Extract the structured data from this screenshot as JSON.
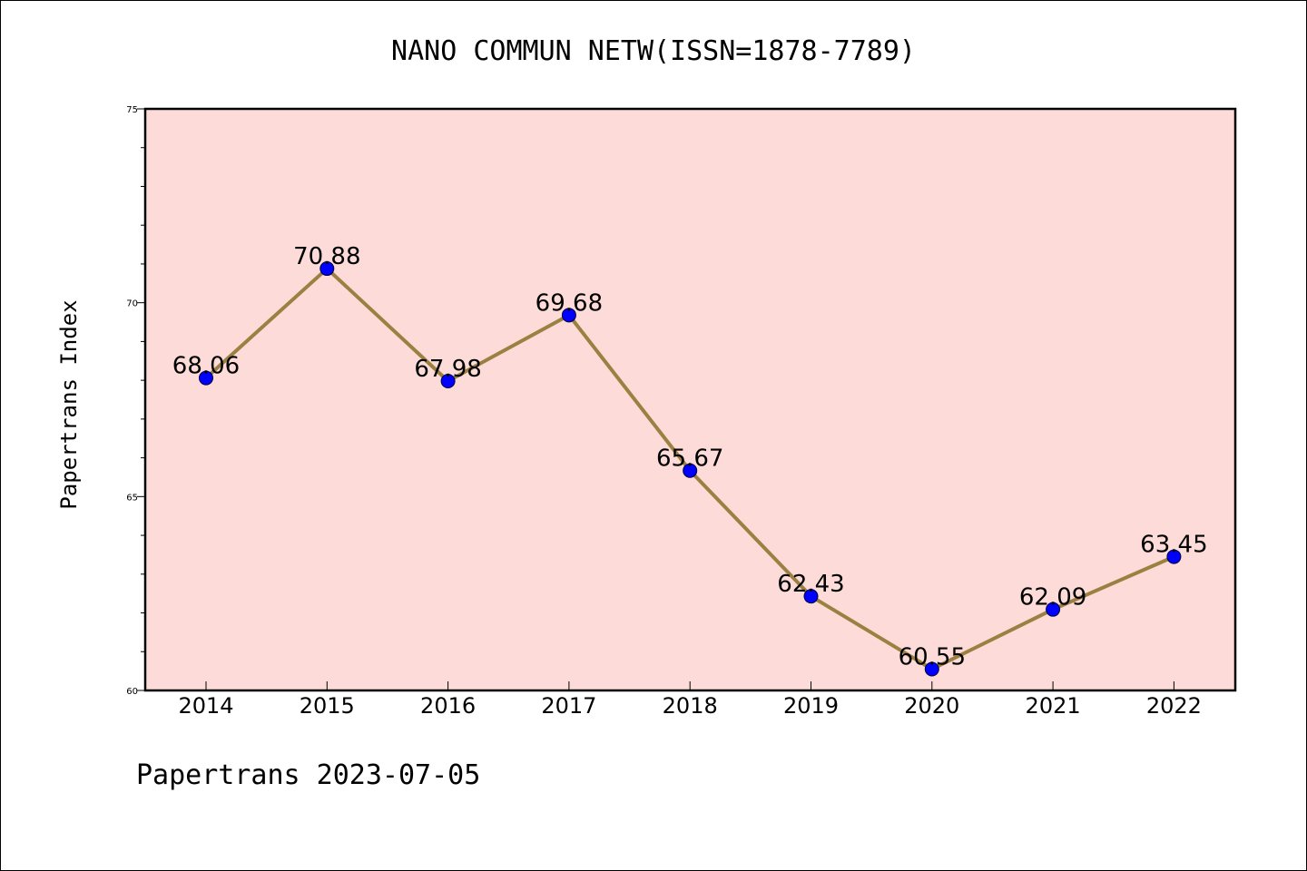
{
  "chart_data": {
    "type": "line",
    "title": "NANO COMMUN NETW(ISSN=1878-7789)",
    "ylabel": "Papertrans Index",
    "xlabel": "",
    "categories": [
      "2014",
      "2015",
      "2016",
      "2017",
      "2018",
      "2019",
      "2020",
      "2021",
      "2022"
    ],
    "series": [
      {
        "values": [
          68.06,
          70.88,
          67.98,
          69.68,
          65.67,
          62.43,
          60.55,
          62.09,
          63.45
        ],
        "labels": [
          "68.06",
          "70.88",
          "67.98",
          "69.68",
          "65.67",
          "62.43",
          "60.55",
          "62.09",
          "63.45"
        ]
      }
    ],
    "ylim": [
      60,
      75
    ],
    "yticks": [
      "60",
      "65",
      "70",
      "75"
    ],
    "grid": false,
    "legend": "none",
    "colors": {
      "plot_bg": "#fddbd8",
      "line": "#9b8141",
      "marker": "#0000ff"
    }
  },
  "footer": "Papertrans 2023-07-05"
}
